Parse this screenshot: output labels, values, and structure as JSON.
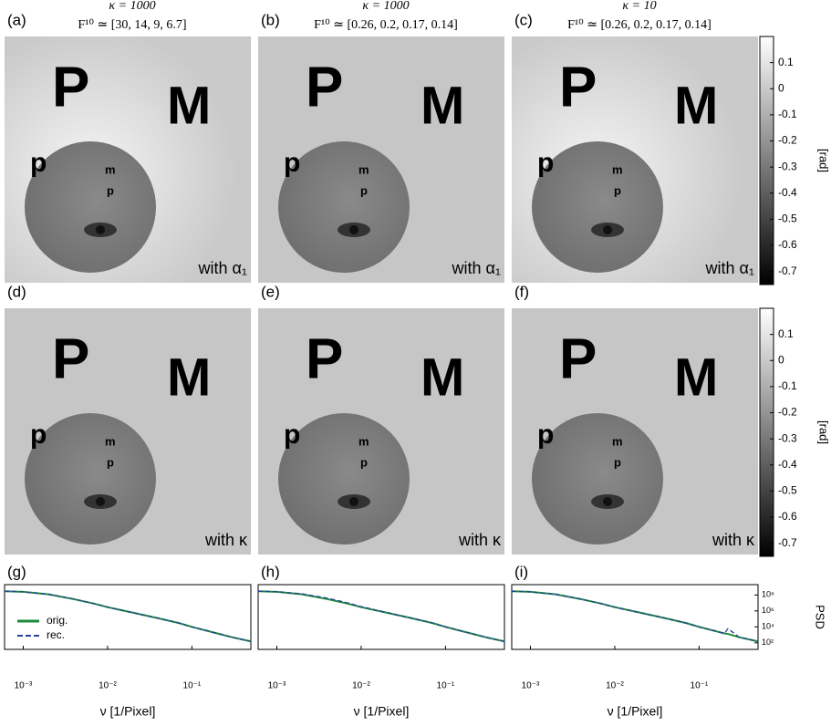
{
  "panels": [
    {
      "label": "(a)",
      "title": "κ = 1000",
      "subtitle": "F¹⁰ ≃ [30, 14, 9, 6.7]",
      "caption": "with α₁"
    },
    {
      "label": "(b)",
      "title": "κ = 1000",
      "subtitle": "F¹⁰ ≃ [0.26, 0.2, 0.17, 0.14]",
      "caption": "with α₁"
    },
    {
      "label": "(c)",
      "title": "κ = 10",
      "subtitle": "F¹⁰ ≃ [0.26, 0.2, 0.17, 0.14]",
      "caption": "with α₁"
    },
    {
      "label": "(d)",
      "caption": "with κ"
    },
    {
      "label": "(e)",
      "caption": "with κ"
    },
    {
      "label": "(f)",
      "caption": "with κ"
    }
  ],
  "image_letters": [
    "P",
    "M",
    "p",
    "m",
    "p"
  ],
  "colorbar": {
    "lim": [
      -0.75,
      0.2
    ],
    "ticks": [
      0.1,
      0,
      -0.1,
      -0.2,
      -0.3,
      -0.4,
      -0.5,
      -0.6,
      -0.7
    ],
    "label": "[rad]"
  },
  "chart_data": [
    {
      "type": "line",
      "label": "(g)",
      "xlabel": "ν [1/Pixel]",
      "xlog": true,
      "ylog": true,
      "legend": "lower left",
      "xlim": [
        0.0006,
        0.5
      ],
      "ylim": [
        15,
        2000000000
      ],
      "xticks": [
        {
          "value": 0.001,
          "label": "10⁻³"
        },
        {
          "value": 0.01,
          "label": "10⁻²"
        },
        {
          "value": 0.1,
          "label": "10⁻¹"
        }
      ],
      "yticks": [],
      "x": [
        0.0006,
        0.001,
        0.002,
        0.004,
        0.007,
        0.01,
        0.02,
        0.04,
        0.07,
        0.1,
        0.2,
        0.3,
        0.5
      ],
      "series": [
        {
          "name": "orig.",
          "color": "#1e8c3c",
          "values": [
            300000000,
            250000000,
            120000000,
            30000000,
            8000000,
            3000000,
            600000,
            120000,
            30000,
            10000,
            1500,
            500,
            150
          ]
        },
        {
          "name": "rec.",
          "color": "#2a3f9e",
          "values": [
            300000000,
            250000000,
            120000000,
            30000000,
            8000000,
            3000000,
            600000,
            120000,
            30000,
            10000,
            1500,
            500,
            150
          ]
        }
      ]
    },
    {
      "type": "line",
      "label": "(h)",
      "xlabel": "ν [1/Pixel]",
      "xlog": true,
      "ylog": true,
      "xlim": [
        0.0006,
        0.5
      ],
      "ylim": [
        15,
        2000000000
      ],
      "xticks": [
        {
          "value": 0.001,
          "label": "10⁻³"
        },
        {
          "value": 0.01,
          "label": "10⁻²"
        },
        {
          "value": 0.1,
          "label": "10⁻¹"
        }
      ],
      "yticks": [],
      "x": [
        0.0006,
        0.001,
        0.002,
        0.004,
        0.007,
        0.01,
        0.02,
        0.04,
        0.07,
        0.1,
        0.2,
        0.3,
        0.5
      ],
      "series": [
        {
          "color": "#1e8c3c",
          "values": [
            300000000,
            250000000,
            120000000,
            30000000,
            8000000,
            3000000,
            600000,
            120000,
            30000,
            10000,
            1500,
            500,
            150
          ]
        },
        {
          "color": "#2a3f9e",
          "values": [
            300000000,
            260000000,
            140000000,
            40000000,
            10000000,
            3500000,
            650000,
            120000,
            30000,
            10000,
            1500,
            500,
            150
          ]
        }
      ]
    },
    {
      "type": "line",
      "label": "(i)",
      "xlabel": "ν [1/Pixel]",
      "ylabel": "PSD",
      "xlog": true,
      "ylog": true,
      "xlim": [
        0.0006,
        0.5
      ],
      "ylim": [
        15,
        2000000000
      ],
      "xticks": [
        {
          "value": 0.001,
          "label": "10⁻³"
        },
        {
          "value": 0.01,
          "label": "10⁻²"
        },
        {
          "value": 0.1,
          "label": "10⁻¹"
        }
      ],
      "yticks": [
        {
          "value": 100,
          "label": "10²"
        },
        {
          "value": 10000,
          "label": "10⁴"
        },
        {
          "value": 1000000,
          "label": "10⁶"
        },
        {
          "value": 100000000,
          "label": "10⁸"
        }
      ],
      "x": [
        0.0006,
        0.001,
        0.002,
        0.004,
        0.007,
        0.01,
        0.02,
        0.04,
        0.07,
        0.1,
        0.2,
        0.22,
        0.3,
        0.5
      ],
      "series": [
        {
          "color": "#1e8c3c",
          "values": [
            300000000,
            250000000,
            120000000,
            30000000,
            8000000,
            3000000,
            600000,
            120000,
            30000,
            10000,
            1500,
            1300,
            500,
            150
          ]
        },
        {
          "color": "#2a3f9e",
          "values": [
            300000000,
            250000000,
            120000000,
            30000000,
            8000000,
            3000000,
            600000,
            120000,
            30000,
            10000,
            1500,
            6000,
            500,
            150
          ]
        }
      ]
    }
  ]
}
